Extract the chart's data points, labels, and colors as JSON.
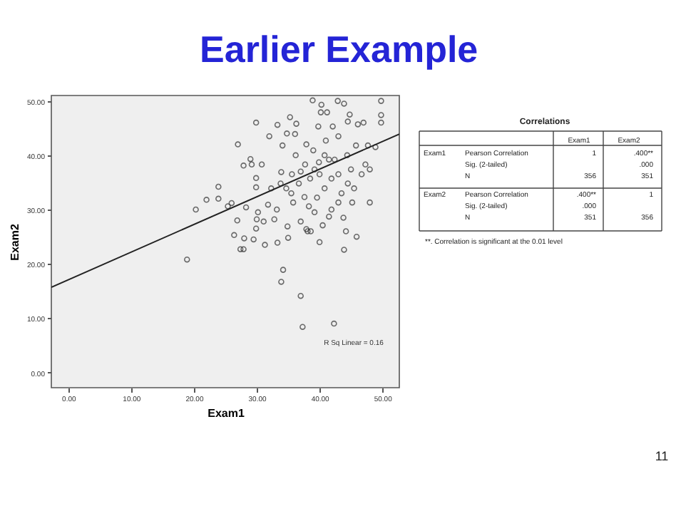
{
  "chart_data": [
    {
      "type": "scatter",
      "title": "Earlier Example",
      "xlabel": "Exam1",
      "ylabel": "Exam2",
      "xlim": [
        -2.7,
        52.7
      ],
      "ylim": [
        -2.8,
        51
      ],
      "xticks": [
        {
          "value": 0,
          "label": "0.00"
        },
        {
          "value": 10,
          "label": "10.00"
        },
        {
          "value": 20,
          "label": "20.00"
        },
        {
          "value": 30,
          "label": "30.00"
        },
        {
          "value": 40,
          "label": "40.00"
        },
        {
          "value": 50,
          "label": "50.00"
        }
      ],
      "yticks": [
        {
          "value": 0,
          "label": "0.00"
        },
        {
          "value": 10,
          "label": "10.00"
        },
        {
          "value": 20,
          "label": "20.00"
        },
        {
          "value": 30,
          "label": "30.00"
        },
        {
          "value": 40,
          "label": "40.00"
        },
        {
          "value": 50,
          "label": "50.00"
        }
      ],
      "series": [
        {
          "marker": "circle",
          "color": "#333333",
          "x": [
            18.9,
            20.3,
            22,
            23.9,
            23.9,
            25.4,
            26,
            26.4,
            26.9,
            27,
            27.4,
            27.9,
            28,
            28.3,
            27.9,
            29,
            29.2,
            29.5,
            29.9,
            29.9,
            29.9,
            30,
            29.9,
            30.2,
            30.8,
            31.1,
            31.3,
            31.8,
            32,
            32.3,
            32.8,
            33.3,
            33.2,
            33.3,
            33.8,
            33.9,
            34.1,
            33.9,
            34.2,
            34.8,
            34.9,
            35,
            35.3,
            35.5,
            35.6,
            36.1,
            36.2,
            36.3,
            36.7,
            37,
            37,
            37.3,
            37.6,
            37.7,
            37.9,
            37.9,
            38.1,
            38.3,
            38.6,
            38.9,
            39,
            39.2,
            39.6,
            39.8,
            39.9,
            40,
            40,
            40.2,
            40.3,
            40.5,
            40.8,
            41,
            41.2,
            41.5,
            41.9,
            41.9,
            42.1,
            42.3,
            42.4,
            42.9,
            43,
            43.5,
            43.8,
            43.9,
            43.9,
            44.2,
            44.4,
            44.5,
            44.8,
            45,
            45.2,
            45.5,
            45.8,
            45.9,
            46.1,
            46.7,
            47,
            47.3,
            47.7,
            48,
            48,
            48.9,
            49.8,
            49.8,
            49.8,
            37,
            38.5,
            41.5,
            43,
            35.8,
            40.8,
            34.7,
            44.5,
            39.2,
            43
          ],
          "values": [
            20.8,
            30,
            31.8,
            34.2,
            32,
            30.6,
            31.2,
            25.3,
            28,
            42,
            22.7,
            22.7,
            24.7,
            30.4,
            38.1,
            39.3,
            38.3,
            24.5,
            46,
            35.8,
            34.1,
            28.2,
            26.5,
            29.5,
            38.3,
            27.8,
            23.5,
            30.9,
            43.5,
            33.9,
            28.2,
            45.6,
            30,
            23.9,
            34.8,
            36.9,
            41.8,
            16.7,
            18.9,
            44,
            26.9,
            24.8,
            47,
            33,
            36.5,
            43.9,
            40,
            45.8,
            34.8,
            14.1,
            27.8,
            8.4,
            32.3,
            38.3,
            26.4,
            42,
            26,
            30.6,
            26,
            50.1,
            40.9,
            37.4,
            32.2,
            45.3,
            38.7,
            36.5,
            24,
            47.9,
            49.3,
            27.1,
            33.9,
            42.7,
            47.9,
            28.7,
            35.7,
            30,
            45.3,
            9,
            39.2,
            50,
            43.5,
            33,
            28.5,
            22.6,
            49.5,
            26,
            40,
            46.2,
            47.5,
            37.4,
            31.3,
            33.9,
            41.8,
            25,
            45.7,
            36.5,
            46,
            38.3,
            41.8,
            31.3,
            37.4,
            41.5,
            50,
            47.4,
            46,
            37,
            35.7,
            39.2,
            36.5,
            31.3,
            40,
            33.9,
            34.8,
            29.5,
            31.3
          ]
        },
        {
          "type": "line",
          "line_style": "solid",
          "color": "#222222",
          "x": [
            -2.7,
            52.7
          ],
          "values": [
            15.7,
            43.9
          ]
        }
      ],
      "annotations": [
        "R Sq Linear = 0.16"
      ]
    },
    {
      "type": "other",
      "title": "Correlations",
      "annotations": [
        "Exam1",
        "Exam2",
        "Exam1",
        "Pearson Correlation",
        "1",
        ".400**",
        "Sig. (2-tailed)",
        ".000",
        "N",
        "356",
        "351",
        "Exam2",
        "Pearson Correlation",
        ".400**",
        "1",
        "Sig. (2-tailed)",
        ".000",
        "N",
        "351",
        "356",
        "**. Correlation is significant at the 0.01 level",
        "11"
      ]
    }
  ]
}
